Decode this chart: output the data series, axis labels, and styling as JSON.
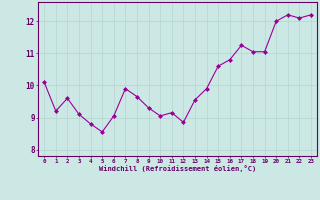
{
  "x": [
    0,
    1,
    2,
    3,
    4,
    5,
    6,
    7,
    8,
    9,
    10,
    11,
    12,
    13,
    14,
    15,
    16,
    17,
    18,
    19,
    20,
    21,
    22,
    23
  ],
  "y": [
    10.1,
    9.2,
    9.6,
    9.1,
    8.8,
    8.55,
    9.05,
    9.9,
    9.65,
    9.3,
    9.05,
    9.15,
    8.85,
    9.55,
    9.9,
    10.6,
    10.8,
    11.25,
    11.05,
    11.05,
    12.0,
    12.2,
    12.1,
    12.2
  ],
  "line_color": "#990099",
  "marker": "D",
  "marker_size": 2.0,
  "bg_color": "#cce8e4",
  "grid_color": "#aacccc",
  "xlabel": "Windchill (Refroidissement éolien,°C)",
  "xtick_labels": [
    "0",
    "1",
    "2",
    "3",
    "4",
    "5",
    "6",
    "7",
    "8",
    "9",
    "10",
    "11",
    "12",
    "13",
    "14",
    "15",
    "16",
    "17",
    "18",
    "19",
    "20",
    "21",
    "22",
    "23"
  ],
  "ytick_labels": [
    "8",
    "9",
    "10",
    "11",
    "12"
  ],
  "yticks": [
    8,
    9,
    10,
    11,
    12
  ],
  "ylim": [
    7.8,
    12.6
  ],
  "xlim": [
    -0.5,
    23.5
  ],
  "label_color": "#660066",
  "tick_color": "#660066",
  "spine_color": "#660066"
}
